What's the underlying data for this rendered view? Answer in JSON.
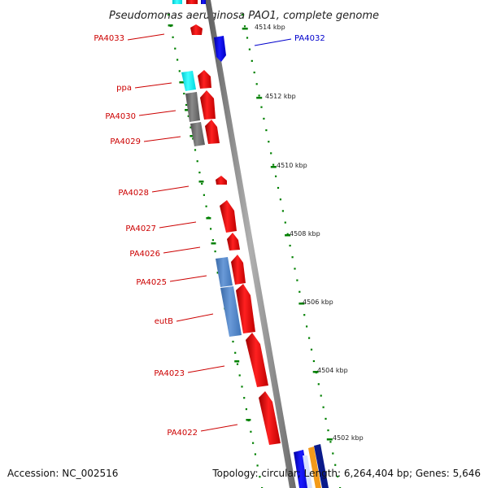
{
  "title": "Pseudomonas aeruginosa PAO1, complete genome",
  "footer": {
    "accession": "Accession: NC_002516",
    "summary": "Topology: circular; Length: 6,264,404 bp; Genes: 5,646"
  },
  "colors": {
    "forward": "#ff0000",
    "reverse": "#0000ee",
    "rna": "#00ffff",
    "grey_feature": "#707070",
    "steelblue_feature": "#4a80c0",
    "backbone": "#808080",
    "tick": "#008000",
    "label_forward": "#cc0000",
    "label_reverse": "#0000cc"
  },
  "scale_ticks": [
    "4514 kbp",
    "4512 kbp",
    "4510 kbp",
    "4508 kbp",
    "4506 kbp",
    "4504 kbp",
    "4502 kbp"
  ],
  "gene_labels": [
    {
      "name": "PA4033",
      "strand": "forward"
    },
    {
      "name": "PA4032",
      "strand": "reverse"
    },
    {
      "name": "ppa",
      "strand": "forward"
    },
    {
      "name": "PA4030",
      "strand": "forward"
    },
    {
      "name": "PA4029",
      "strand": "forward"
    },
    {
      "name": "PA4028",
      "strand": "forward"
    },
    {
      "name": "PA4027",
      "strand": "forward"
    },
    {
      "name": "PA4026",
      "strand": "forward"
    },
    {
      "name": "PA4025",
      "strand": "forward"
    },
    {
      "name": "eutB",
      "strand": "forward"
    },
    {
      "name": "PA4023",
      "strand": "forward"
    },
    {
      "name": "PA4022",
      "strand": "forward"
    }
  ]
}
